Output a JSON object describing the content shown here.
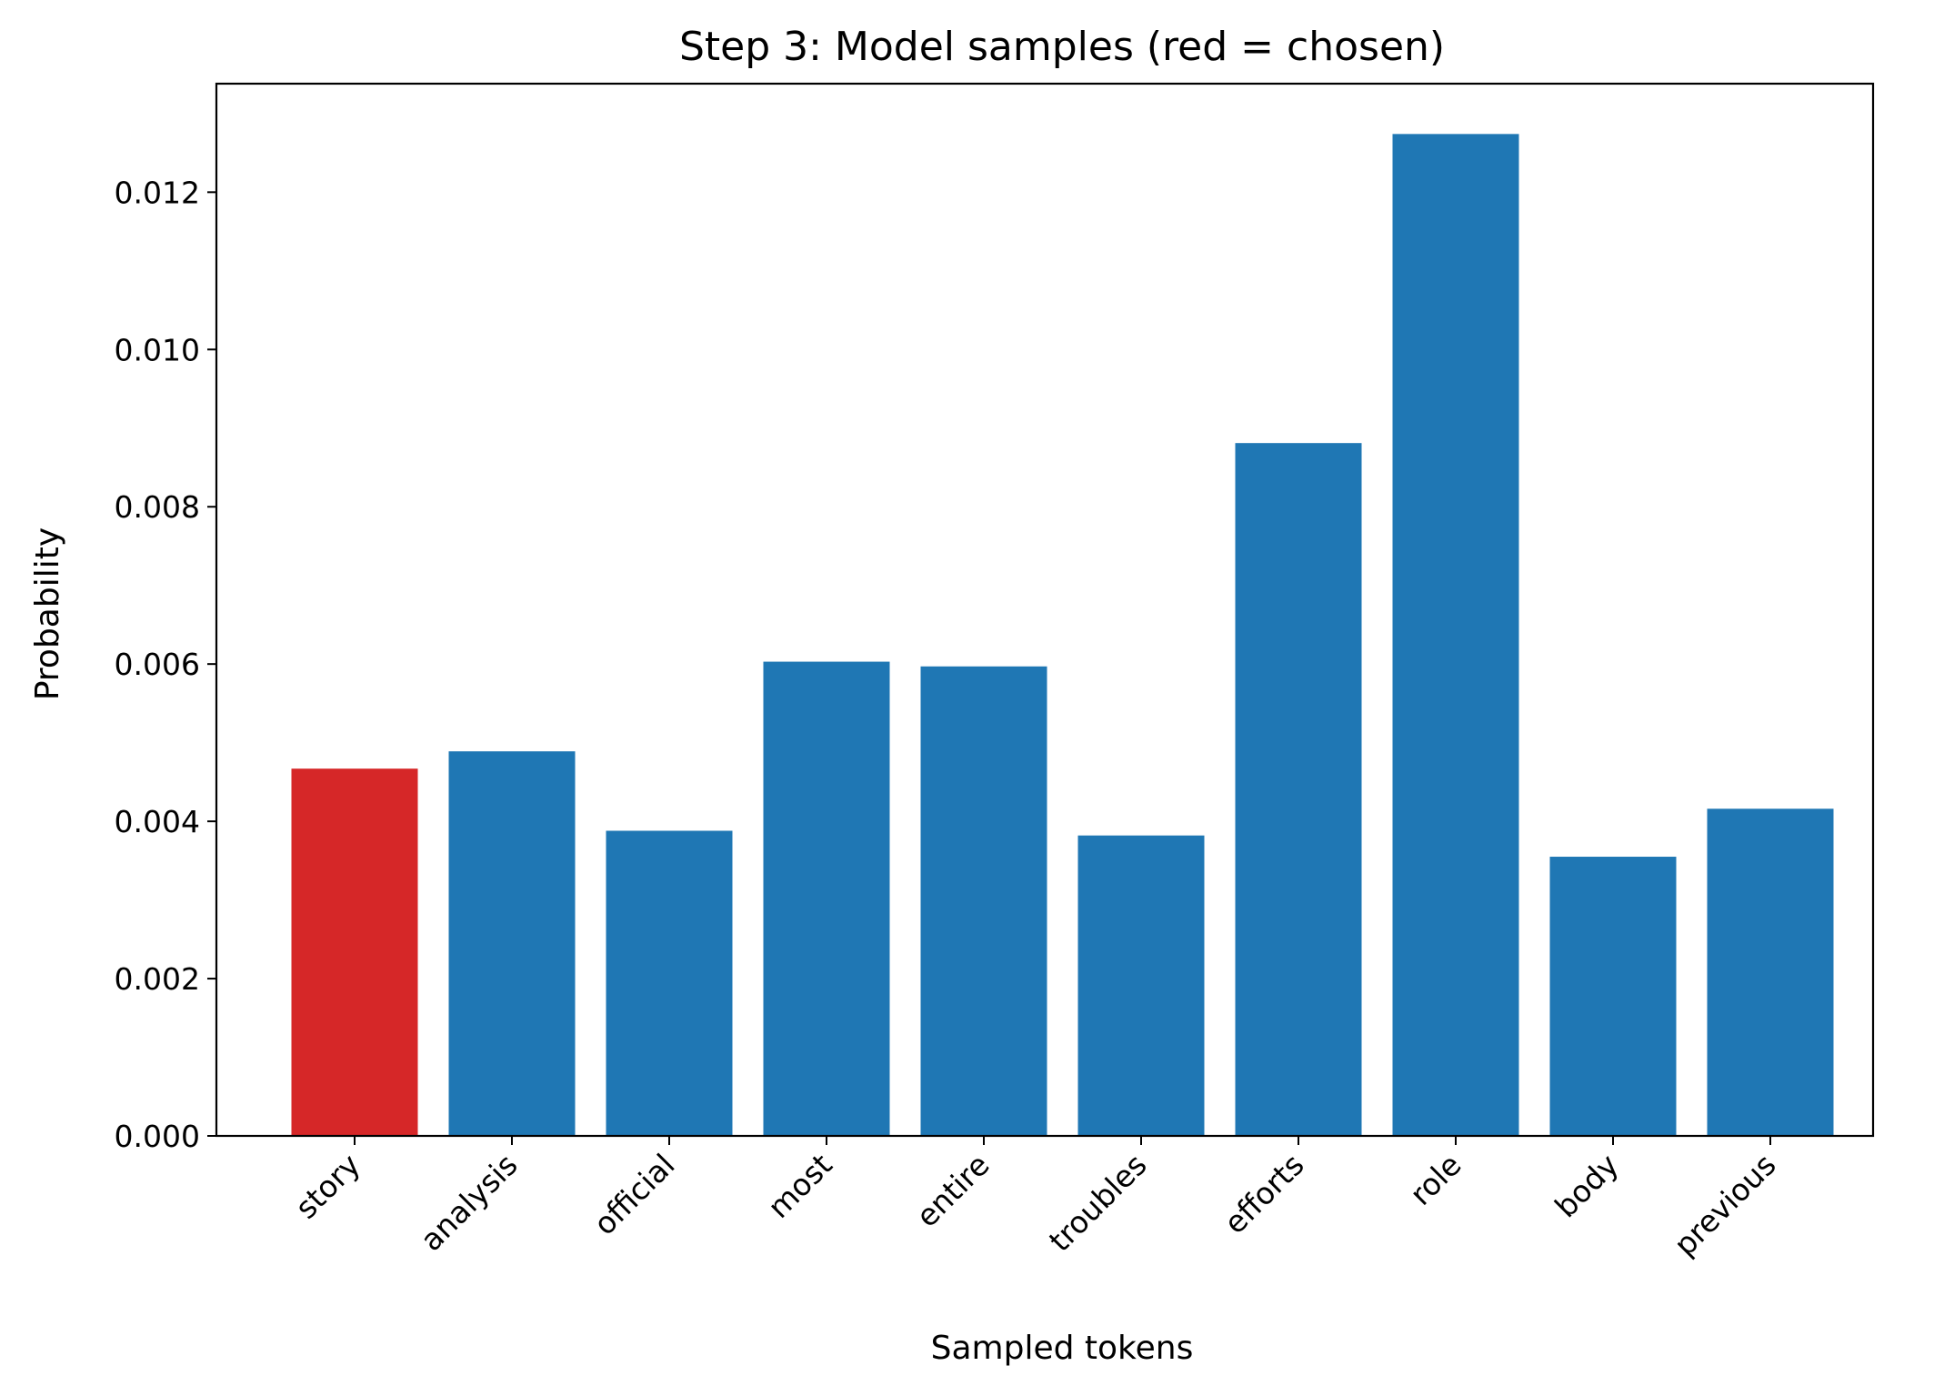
{
  "chart_data": {
    "type": "bar",
    "title": "Step 3: Model samples (red = chosen)",
    "xlabel": "Sampled tokens",
    "ylabel": "Probability",
    "categories": [
      "story",
      "analysis",
      "official",
      "most",
      "entire",
      "troubles",
      "efforts",
      "role",
      "body",
      "previous"
    ],
    "values": [
      0.00467,
      0.00489,
      0.00388,
      0.00603,
      0.00597,
      0.00382,
      0.00881,
      0.01274,
      0.00355,
      0.00416
    ],
    "chosen": "story",
    "ylim": [
      0,
      0.01338
    ],
    "yticks": [
      "0.000",
      "0.002",
      "0.004",
      "0.006",
      "0.008",
      "0.010",
      "0.012"
    ],
    "colors": {
      "default": "#1f77b4",
      "chosen": "#d62728"
    },
    "grid": false,
    "legend": "none"
  }
}
